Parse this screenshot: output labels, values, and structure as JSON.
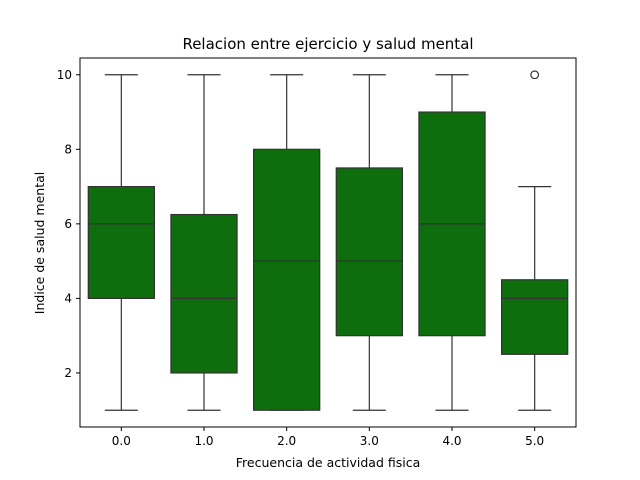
{
  "chart_data": {
    "type": "box",
    "title": "Relacion entre ejercicio y salud mental",
    "xlabel": "Frecuencia de actividad fisica",
    "ylabel": "Indice de salud mental",
    "categories": [
      "0.0",
      "1.0",
      "2.0",
      "3.0",
      "4.0",
      "5.0"
    ],
    "ylim": [
      0.55,
      10.45
    ],
    "yticks": [
      2,
      4,
      6,
      8,
      10
    ],
    "box_color": "#0e6e0e",
    "edge_color": "#333333",
    "grid": false,
    "legend": "none",
    "boxes": [
      {
        "category": "0.0",
        "whisker_low": 1,
        "q1": 4,
        "median": 6,
        "q3": 7,
        "whisker_high": 10,
        "outliers": []
      },
      {
        "category": "1.0",
        "whisker_low": 1,
        "q1": 2,
        "median": 4,
        "q3": 6.25,
        "whisker_high": 10,
        "outliers": []
      },
      {
        "category": "2.0",
        "whisker_low": 1,
        "q1": 1,
        "median": 5,
        "q3": 8,
        "whisker_high": 10,
        "outliers": []
      },
      {
        "category": "3.0",
        "whisker_low": 1,
        "q1": 3,
        "median": 5,
        "q3": 7.5,
        "whisker_high": 10,
        "outliers": []
      },
      {
        "category": "4.0",
        "whisker_low": 1,
        "q1": 3,
        "median": 6,
        "q3": 9,
        "whisker_high": 10,
        "outliers": []
      },
      {
        "category": "5.0",
        "whisker_low": 1,
        "q1": 2.5,
        "median": 4,
        "q3": 4.5,
        "whisker_high": 7,
        "outliers": [
          10
        ]
      }
    ]
  }
}
